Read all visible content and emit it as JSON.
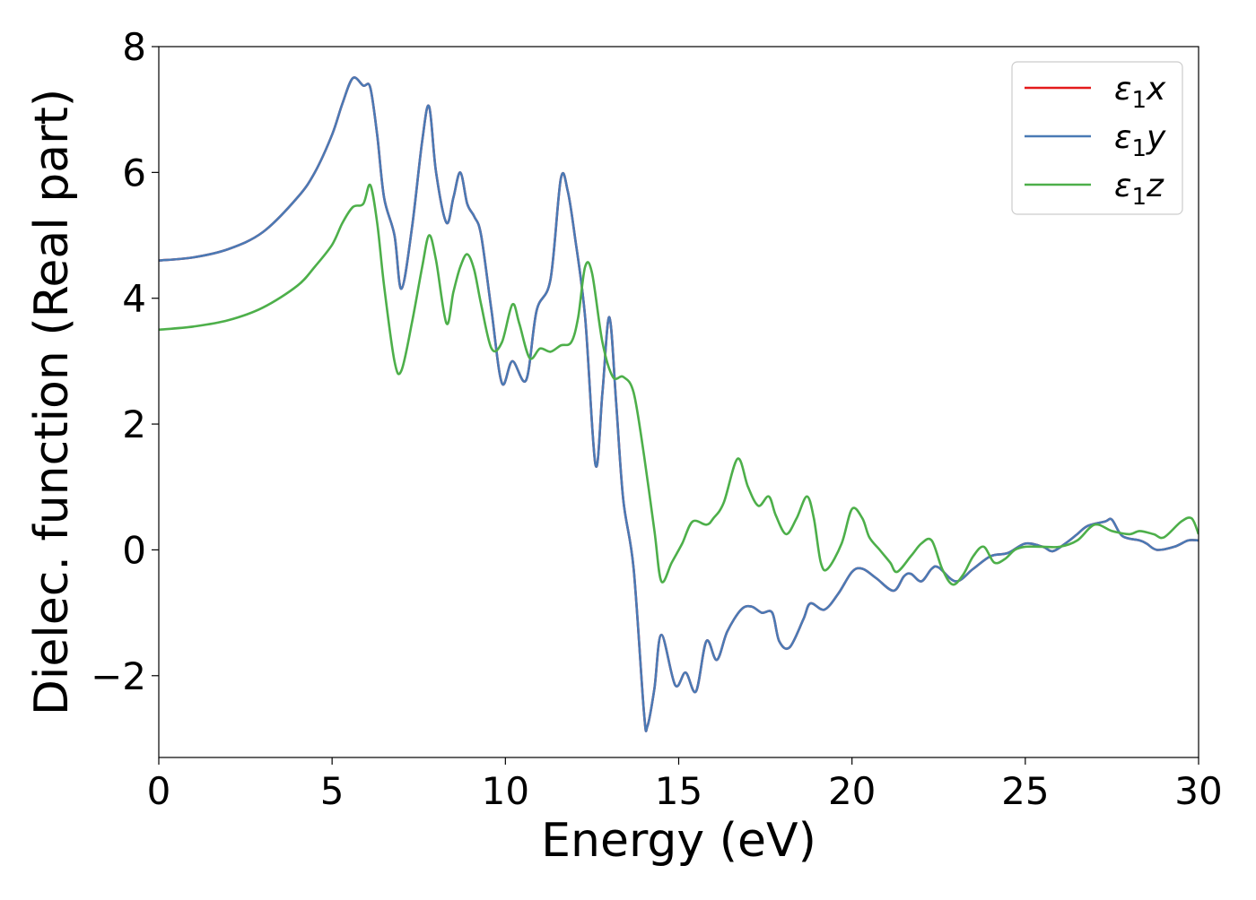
{
  "chart_data": {
    "type": "line",
    "title": "",
    "xlabel": "Energy (eV)",
    "ylabel": "Dielec. function (Real part)",
    "xlim": [
      0,
      30
    ],
    "ylim": [
      -3.3,
      8
    ],
    "xticks": [
      0,
      5,
      10,
      15,
      20,
      25,
      30
    ],
    "xtick_labels": [
      "0",
      "5",
      "10",
      "15",
      "20",
      "25",
      "30"
    ],
    "yticks": [
      -2,
      0,
      2,
      4,
      6,
      8
    ],
    "ytick_labels": [
      "−2",
      "0",
      "2",
      "4",
      "6",
      "8"
    ],
    "grid": false,
    "legend_position": "top-right",
    "series": [
      {
        "name": "ε1x",
        "legend_main": "ε",
        "legend_sub": "1",
        "legend_var": "x",
        "color": "#e41a1c",
        "x": [
          0,
          1,
          2,
          3,
          4,
          4.5,
          5,
          5.3,
          5.6,
          5.9,
          6.1,
          6.3,
          6.5,
          6.8,
          7.0,
          7.3,
          7.6,
          7.8,
          8.0,
          8.3,
          8.5,
          8.7,
          8.9,
          9.1,
          9.3,
          9.6,
          9.9,
          10.2,
          10.6,
          10.9,
          11.3,
          11.6,
          11.8,
          12.0,
          12.3,
          12.6,
          12.8,
          13.0,
          13.2,
          13.4,
          13.7,
          14.0,
          14.1,
          14.3,
          14.5,
          14.9,
          15.2,
          15.5,
          15.8,
          16.1,
          16.4,
          16.8,
          17.1,
          17.4,
          17.7,
          17.9,
          18.2,
          18.6,
          18.8,
          19.2,
          19.6,
          20.0,
          20.3,
          20.7,
          21.2,
          21.5,
          21.7,
          22.0,
          22.3,
          22.5,
          23.0,
          23.5,
          24.0,
          24.5,
          25.0,
          25.5,
          25.8,
          26.2,
          26.5,
          26.8,
          27.3,
          27.5,
          27.8,
          28.3,
          28.5,
          28.8,
          29.3,
          29.7,
          30.0
        ],
        "y": [
          4.6,
          4.65,
          4.78,
          5.05,
          5.6,
          6.0,
          6.6,
          7.1,
          7.5,
          7.38,
          7.35,
          6.6,
          5.6,
          5.0,
          4.15,
          5.1,
          6.5,
          7.05,
          6.0,
          5.2,
          5.6,
          6.0,
          5.5,
          5.3,
          5.0,
          3.8,
          2.65,
          3.0,
          2.7,
          3.8,
          4.3,
          5.9,
          5.7,
          5.0,
          3.7,
          1.35,
          2.5,
          3.7,
          2.3,
          0.8,
          -0.3,
          -2.6,
          -2.8,
          -2.2,
          -1.35,
          -2.15,
          -1.95,
          -2.25,
          -1.45,
          -1.75,
          -1.3,
          -0.95,
          -0.9,
          -1.0,
          -1.0,
          -1.45,
          -1.55,
          -1.1,
          -0.85,
          -0.95,
          -0.7,
          -0.35,
          -0.3,
          -0.45,
          -0.65,
          -0.42,
          -0.38,
          -0.5,
          -0.3,
          -0.28,
          -0.5,
          -0.3,
          -0.1,
          -0.05,
          0.1,
          0.05,
          -0.02,
          0.12,
          0.25,
          0.38,
          0.45,
          0.48,
          0.22,
          0.15,
          0.1,
          0.0,
          0.05,
          0.15,
          0.15
        ]
      },
      {
        "name": "ε1y",
        "legend_main": "ε",
        "legend_sub": "1",
        "legend_var": "y",
        "color": "#4a7ab5",
        "x": [
          0,
          1,
          2,
          3,
          4,
          4.5,
          5,
          5.3,
          5.6,
          5.9,
          6.1,
          6.3,
          6.5,
          6.8,
          7.0,
          7.3,
          7.6,
          7.8,
          8.0,
          8.3,
          8.5,
          8.7,
          8.9,
          9.1,
          9.3,
          9.6,
          9.9,
          10.2,
          10.6,
          10.9,
          11.3,
          11.6,
          11.8,
          12.0,
          12.3,
          12.6,
          12.8,
          13.0,
          13.2,
          13.4,
          13.7,
          14.0,
          14.1,
          14.3,
          14.5,
          14.9,
          15.2,
          15.5,
          15.8,
          16.1,
          16.4,
          16.8,
          17.1,
          17.4,
          17.7,
          17.9,
          18.2,
          18.6,
          18.8,
          19.2,
          19.6,
          20.0,
          20.3,
          20.7,
          21.2,
          21.5,
          21.7,
          22.0,
          22.3,
          22.5,
          23.0,
          23.5,
          24.0,
          24.5,
          25.0,
          25.5,
          25.8,
          26.2,
          26.5,
          26.8,
          27.3,
          27.5,
          27.8,
          28.3,
          28.5,
          28.8,
          29.3,
          29.7,
          30.0
        ],
        "y": [
          4.6,
          4.65,
          4.78,
          5.05,
          5.6,
          6.0,
          6.6,
          7.1,
          7.5,
          7.38,
          7.35,
          6.6,
          5.6,
          5.0,
          4.15,
          5.1,
          6.5,
          7.05,
          6.0,
          5.2,
          5.6,
          6.0,
          5.5,
          5.3,
          5.0,
          3.8,
          2.65,
          3.0,
          2.7,
          3.8,
          4.3,
          5.9,
          5.7,
          5.0,
          3.7,
          1.35,
          2.5,
          3.7,
          2.3,
          0.8,
          -0.3,
          -2.6,
          -2.8,
          -2.2,
          -1.35,
          -2.15,
          -1.95,
          -2.25,
          -1.45,
          -1.75,
          -1.3,
          -0.95,
          -0.9,
          -1.0,
          -1.0,
          -1.45,
          -1.55,
          -1.1,
          -0.85,
          -0.95,
          -0.7,
          -0.35,
          -0.3,
          -0.45,
          -0.65,
          -0.42,
          -0.38,
          -0.5,
          -0.3,
          -0.28,
          -0.5,
          -0.3,
          -0.1,
          -0.05,
          0.1,
          0.05,
          -0.02,
          0.12,
          0.25,
          0.38,
          0.45,
          0.48,
          0.22,
          0.15,
          0.1,
          0.0,
          0.05,
          0.15,
          0.15
        ]
      },
      {
        "name": "ε1z",
        "legend_main": "ε",
        "legend_sub": "1",
        "legend_var": "z",
        "color": "#4daf4a",
        "x": [
          0,
          1,
          2,
          3,
          4,
          4.5,
          5,
          5.3,
          5.6,
          5.9,
          6.1,
          6.3,
          6.5,
          6.8,
          7.0,
          7.3,
          7.6,
          7.8,
          8.0,
          8.3,
          8.5,
          8.7,
          8.9,
          9.1,
          9.3,
          9.6,
          9.9,
          10.2,
          10.4,
          10.7,
          11.0,
          11.3,
          11.6,
          11.9,
          12.1,
          12.3,
          12.5,
          12.8,
          13.1,
          13.4,
          13.7,
          14.0,
          14.3,
          14.5,
          14.8,
          15.1,
          15.4,
          15.8,
          16.0,
          16.3,
          16.7,
          17.0,
          17.3,
          17.6,
          17.8,
          18.1,
          18.4,
          18.7,
          18.9,
          19.1,
          19.3,
          19.7,
          20.0,
          20.3,
          20.5,
          20.8,
          21.1,
          21.3,
          21.7,
          22.0,
          22.3,
          22.6,
          22.9,
          23.2,
          23.5,
          23.8,
          24.1,
          24.4,
          24.7,
          25.0,
          25.5,
          26.0,
          26.5,
          27.0,
          27.5,
          28.0,
          28.3,
          28.7,
          29.0,
          29.5,
          29.8,
          30.0
        ],
        "y": [
          3.5,
          3.55,
          3.65,
          3.85,
          4.2,
          4.5,
          4.85,
          5.2,
          5.45,
          5.5,
          5.8,
          5.2,
          4.2,
          3.0,
          2.85,
          3.6,
          4.5,
          5.0,
          4.6,
          3.6,
          4.1,
          4.5,
          4.7,
          4.45,
          3.9,
          3.2,
          3.3,
          3.9,
          3.6,
          3.05,
          3.2,
          3.15,
          3.25,
          3.3,
          3.7,
          4.5,
          4.4,
          3.3,
          2.75,
          2.75,
          2.5,
          1.5,
          0.3,
          -0.5,
          -0.2,
          0.1,
          0.45,
          0.4,
          0.5,
          0.75,
          1.45,
          1.0,
          0.7,
          0.85,
          0.55,
          0.25,
          0.5,
          0.85,
          0.5,
          -0.2,
          -0.3,
          0.1,
          0.65,
          0.5,
          0.2,
          0.0,
          -0.2,
          -0.35,
          -0.1,
          0.1,
          0.15,
          -0.3,
          -0.55,
          -0.4,
          -0.1,
          0.05,
          -0.2,
          -0.15,
          0.0,
          0.05,
          0.05,
          0.05,
          0.15,
          0.4,
          0.3,
          0.25,
          0.3,
          0.25,
          0.2,
          0.45,
          0.5,
          0.25
        ]
      }
    ]
  }
}
